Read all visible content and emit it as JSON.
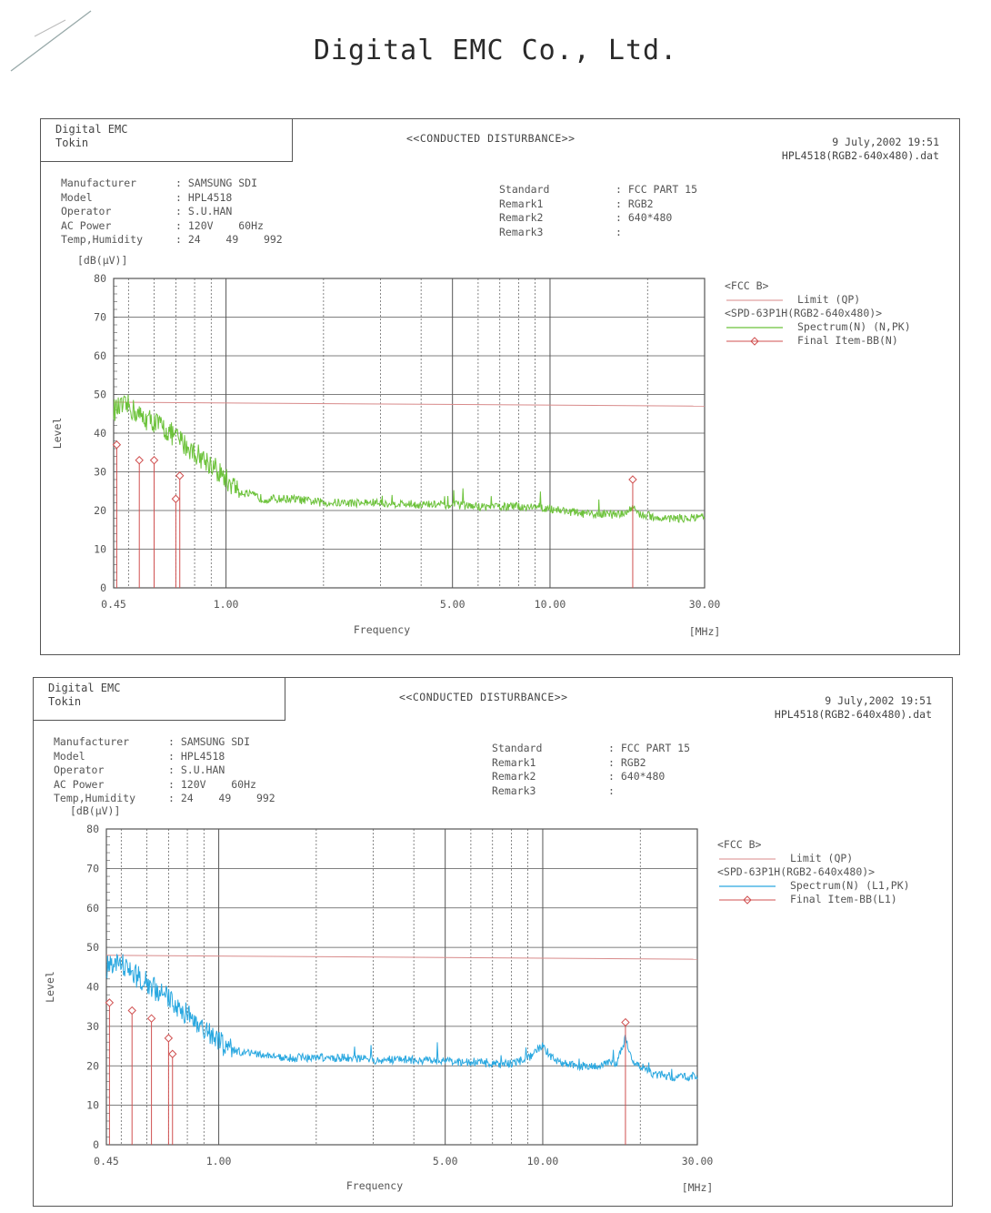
{
  "page_header": "Digital EMC Co., Ltd.",
  "colors": {
    "spectrum_n": "#6cc23a",
    "spectrum_l1": "#2aa8e0",
    "limit": "#d88a8a",
    "final": "#d05050",
    "grid": "#555555"
  },
  "reports": [
    {
      "company": [
        "Digital EMC",
        "Tokin"
      ],
      "title": "<<CONDUCTED DISTURBANCE>>",
      "date": "9 July,2002 19:51",
      "file": "HPL4518(RGB2-640x480).dat",
      "fields": [
        {
          "label": "Manufacturer",
          "value": "SAMSUNG SDI"
        },
        {
          "label": "Model",
          "value": "HPL4518"
        },
        {
          "label": "Operator",
          "value": "S.U.HAN"
        },
        {
          "label": "AC Power",
          "value": "120V    60Hz"
        },
        {
          "label": "Temp,Humidity",
          "value": "24    49    992"
        }
      ],
      "standard": [
        {
          "label": "Standard",
          "value": "FCC PART 15"
        },
        {
          "label": "Remark1",
          "value": "RGB2"
        },
        {
          "label": "Remark2",
          "value": "640*480"
        },
        {
          "label": "Remark3",
          "value": ""
        }
      ],
      "legend": {
        "group": "<FCC B>",
        "limit": "Limit (QP)",
        "set": "<SPD-63P1H(RGB2-640x480)>",
        "spectrum": "Spectrum(N) (N,PK)",
        "final": "Final Item-BB(N)"
      },
      "chart_data": {
        "type": "line",
        "xscale": "log",
        "xlabel": "Frequency",
        "xunit": "[MHz]",
        "ylabel": "Level",
        "yunit": "[dB(μV)]",
        "xlim": [
          0.45,
          30.0
        ],
        "ylim": [
          0,
          80
        ],
        "xticks": [
          "0.45",
          "1.00",
          "5.00",
          "10.00",
          "30.00"
        ],
        "yticks": [
          "0",
          "10",
          "20",
          "30",
          "40",
          "50",
          "60",
          "70",
          "80"
        ],
        "grid": true,
        "series": [
          {
            "name": "Limit (QP)",
            "color": "#d88a8a",
            "points": [
              [
                0.45,
                48
              ],
              [
                30,
                47
              ]
            ]
          },
          {
            "name": "Spectrum(N) (N,PK)",
            "color": "#6cc23a",
            "points": [
              [
                0.45,
                46
              ],
              [
                0.5,
                47
              ],
              [
                0.55,
                44
              ],
              [
                0.6,
                43
              ],
              [
                0.7,
                39
              ],
              [
                0.8,
                35
              ],
              [
                0.9,
                32
              ],
              [
                1.0,
                28
              ],
              [
                1.1,
                25
              ],
              [
                1.3,
                23
              ],
              [
                1.6,
                23
              ],
              [
                2,
                22
              ],
              [
                2.5,
                22
              ],
              [
                3,
                22
              ],
              [
                4,
                21.5
              ],
              [
                5,
                21.5
              ],
              [
                6,
                21
              ],
              [
                7,
                21
              ],
              [
                8,
                21
              ],
              [
                9,
                21
              ],
              [
                10,
                20.5
              ],
              [
                11,
                20
              ],
              [
                13,
                19
              ],
              [
                15,
                19
              ],
              [
                17,
                19
              ],
              [
                18,
                21
              ],
              [
                19,
                19
              ],
              [
                22,
                18
              ],
              [
                26,
                18
              ],
              [
                30,
                18
              ]
            ]
          },
          {
            "name": "Final Item-BB(N)",
            "color": "#d05050",
            "type": "stem",
            "points": [
              [
                0.46,
                37
              ],
              [
                0.54,
                33
              ],
              [
                0.6,
                33
              ],
              [
                0.7,
                23
              ],
              [
                0.72,
                29
              ],
              [
                18,
                28
              ]
            ]
          }
        ]
      }
    },
    {
      "company": [
        "Digital EMC",
        "Tokin"
      ],
      "title": "<<CONDUCTED DISTURBANCE>>",
      "date": "9 July,2002 19:51",
      "file": "HPL4518(RGB2-640x480).dat",
      "fields": [
        {
          "label": "Manufacturer",
          "value": "SAMSUNG SDI"
        },
        {
          "label": "Model",
          "value": "HPL4518"
        },
        {
          "label": "Operator",
          "value": "S.U.HAN"
        },
        {
          "label": "AC Power",
          "value": "120V    60Hz"
        },
        {
          "label": "Temp,Humidity",
          "value": "24    49    992"
        }
      ],
      "standard": [
        {
          "label": "Standard",
          "value": "FCC PART 15"
        },
        {
          "label": "Remark1",
          "value": "RGB2"
        },
        {
          "label": "Remark2",
          "value": "640*480"
        },
        {
          "label": "Remark3",
          "value": ""
        }
      ],
      "legend": {
        "group": "<FCC B>",
        "limit": "Limit (QP)",
        "set": "<SPD-63P1H(RGB2-640x480)>",
        "spectrum": "Spectrum(N) (L1,PK)",
        "final": "Final Item-BB(L1)"
      },
      "chart_data": {
        "type": "line",
        "xscale": "log",
        "xlabel": "Frequency",
        "xunit": "[MHz]",
        "ylabel": "Level",
        "yunit": "[dB(μV)]",
        "xlim": [
          0.45,
          30.0
        ],
        "ylim": [
          0,
          80
        ],
        "xticks": [
          "0.45",
          "1.00",
          "5.00",
          "10.00",
          "30.00"
        ],
        "yticks": [
          "0",
          "10",
          "20",
          "30",
          "40",
          "50",
          "60",
          "70",
          "80"
        ],
        "grid": true,
        "series": [
          {
            "name": "Limit (QP)",
            "color": "#d88a8a",
            "points": [
              [
                0.45,
                48
              ],
              [
                30,
                47
              ]
            ]
          },
          {
            "name": "Spectrum(N) (L1,PK)",
            "color": "#2aa8e0",
            "points": [
              [
                0.45,
                45
              ],
              [
                0.5,
                46
              ],
              [
                0.55,
                43
              ],
              [
                0.6,
                41
              ],
              [
                0.7,
                37
              ],
              [
                0.8,
                33
              ],
              [
                0.9,
                30
              ],
              [
                1.0,
                26
              ],
              [
                1.1,
                24
              ],
              [
                1.3,
                23
              ],
              [
                1.6,
                22
              ],
              [
                2,
                22
              ],
              [
                2.5,
                22
              ],
              [
                3,
                21.5
              ],
              [
                4,
                21.5
              ],
              [
                5,
                21
              ],
              [
                6,
                21
              ],
              [
                7,
                20.5
              ],
              [
                8,
                20.5
              ],
              [
                9,
                22
              ],
              [
                10,
                25
              ],
              [
                11,
                21
              ],
              [
                13,
                20
              ],
              [
                15,
                20
              ],
              [
                17,
                21
              ],
              [
                18,
                27
              ],
              [
                19,
                21
              ],
              [
                22,
                18
              ],
              [
                26,
                17
              ],
              [
                30,
                17.5
              ]
            ]
          },
          {
            "name": "Final Item-BB(L1)",
            "color": "#d05050",
            "type": "stem",
            "points": [
              [
                0.46,
                36
              ],
              [
                0.54,
                34
              ],
              [
                0.62,
                32
              ],
              [
                0.7,
                27
              ],
              [
                0.72,
                23
              ],
              [
                18,
                31
              ]
            ]
          }
        ]
      }
    }
  ]
}
